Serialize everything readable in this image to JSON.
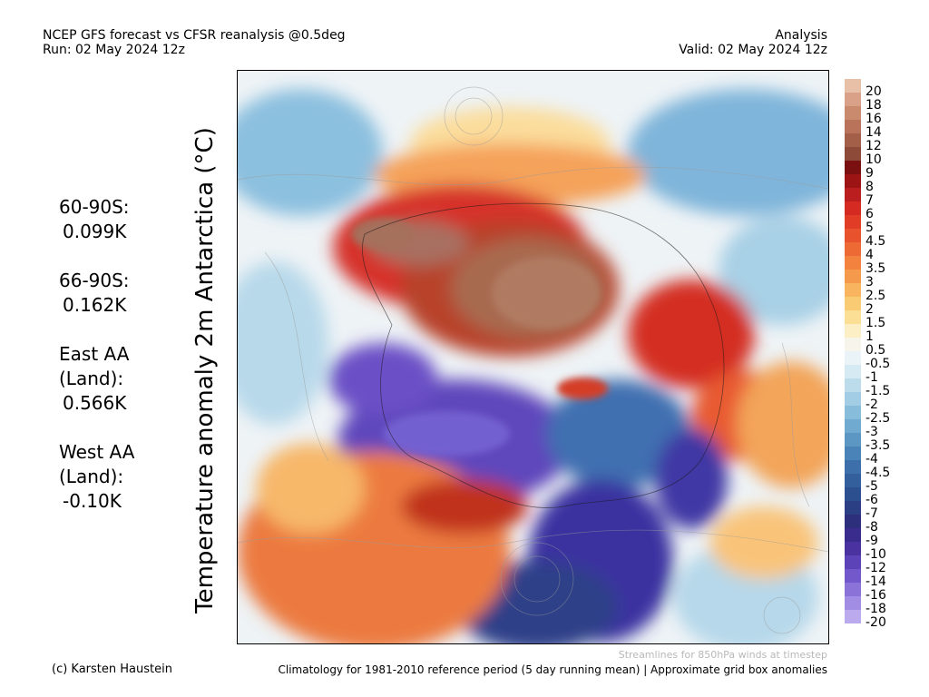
{
  "header": {
    "title": "NCEP GFS forecast vs CFSR reanalysis @0.5deg",
    "run": "Run: 02 May 2024 12z",
    "mode": "Analysis",
    "valid": "Valid: 02 May 2024 12z"
  },
  "variable_label": "Temperature anomaly 2m Antarctica (°C)",
  "stats": [
    {
      "label": "60-90S:",
      "value": "0.099K"
    },
    {
      "label": "66-90S:",
      "value": "0.162K"
    },
    {
      "label": "East AA (Land):",
      "label_lines": [
        "East AA",
        "(Land):"
      ],
      "value": "0.566K"
    },
    {
      "label": "West AA (Land):",
      "label_lines": [
        "West AA",
        "(Land):"
      ],
      "value": "-0.10K"
    }
  ],
  "colorbar": {
    "labels": [
      "20",
      "18",
      "16",
      "14",
      "12",
      "10",
      "9",
      "8",
      "7",
      "6",
      "5",
      "4.5",
      "4",
      "3.5",
      "3",
      "2.5",
      "2",
      "1.5",
      "1",
      "0.5",
      "-0.5",
      "-1",
      "-1.5",
      "-2",
      "-2.5",
      "-3",
      "-3.5",
      "-4",
      "-4.5",
      "-5",
      "-6",
      "-7",
      "-8",
      "-9",
      "-10",
      "-12",
      "-14",
      "-16",
      "-18",
      "-20"
    ],
    "colors": [
      "#e8c0a8",
      "#d9a288",
      "#c98a6e",
      "#b8735a",
      "#a45f48",
      "#8e4a38",
      "#7a1010",
      "#9c1414",
      "#bb1e1e",
      "#d42a22",
      "#e03c26",
      "#e8522c",
      "#ee6a34",
      "#f2823e",
      "#f59a4c",
      "#f8b45e",
      "#f9cb72",
      "#fbdf94",
      "#fcefc6",
      "#f7f4ec",
      "#eaf3f8",
      "#d6eaf3",
      "#bcdcec",
      "#a2cde4",
      "#88bcdb",
      "#70aad0",
      "#5c97c4",
      "#4a83b7",
      "#3d70aa",
      "#33609d",
      "#2c4f90",
      "#2b3f85",
      "#2e2f7c",
      "#3a2c8c",
      "#4a33a0",
      "#5d43b8",
      "#7258cb",
      "#8a72d9",
      "#a28de5",
      "#bcaaef"
    ]
  },
  "footer": {
    "credit": "(c) Karsten Haustein",
    "streamlines": "Streamlines for 850hPa winds at timestep",
    "climatology": "Climatology for 1981-2010 reference period (5 day running mean) | Approximate grid box anomalies"
  }
}
